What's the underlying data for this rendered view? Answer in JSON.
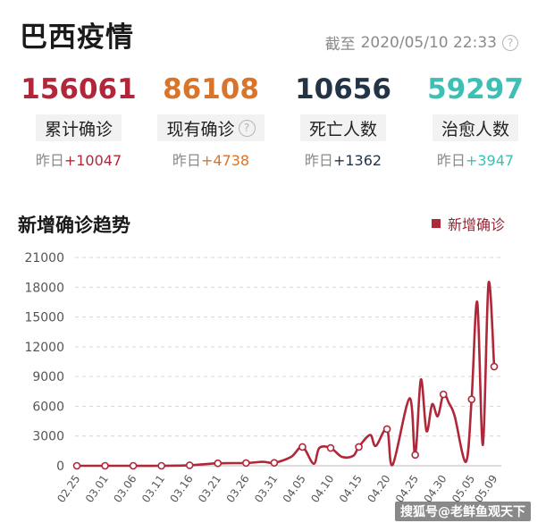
{
  "header": {
    "title": "巴西疫情",
    "deadline_label": "截至",
    "deadline_time": "2020/05/10 22:33"
  },
  "stats": [
    {
      "value": "156061",
      "label": "累计确诊",
      "delta_label": "昨日",
      "delta": "+10047",
      "color": "#b0273a",
      "has_help": false
    },
    {
      "value": "86108",
      "label": "现有确诊",
      "delta_label": "昨日",
      "delta": "+4738",
      "color": "#d9742b",
      "has_help": true
    },
    {
      "value": "10656",
      "label": "死亡人数",
      "delta_label": "昨日",
      "delta": "+1362",
      "color": "#243447",
      "has_help": false
    },
    {
      "value": "59297",
      "label": "治愈人数",
      "delta_label": "昨日",
      "delta": "+3947",
      "color": "#3cbfb4",
      "has_help": false
    }
  ],
  "chart_section": {
    "title": "新增确诊趋势",
    "legend_label": "新增确诊"
  },
  "chart_data": {
    "type": "line",
    "title": "新增确诊趋势",
    "xlabel": "",
    "ylabel": "",
    "ylim": [
      0,
      21000
    ],
    "yticks": [
      0,
      3000,
      6000,
      9000,
      12000,
      15000,
      18000,
      21000
    ],
    "xtick_labels": [
      "02.25",
      "03.01",
      "03.06",
      "03.11",
      "03.16",
      "03.21",
      "03.26",
      "03.31",
      "04.05",
      "04.10",
      "04.15",
      "04.20",
      "04.25",
      "04.30",
      "05.05",
      "05.09"
    ],
    "grid": true,
    "legend": "top-right",
    "color": "#b0273a",
    "series": [
      {
        "name": "新增确诊",
        "values": [
          [
            "02.25",
            0
          ],
          [
            "03.01",
            0
          ],
          [
            "03.06",
            0
          ],
          [
            "03.11",
            0
          ],
          [
            "03.16",
            50
          ],
          [
            "03.21",
            250
          ],
          [
            "03.26",
            280
          ],
          [
            "03.29",
            400
          ],
          [
            "03.31",
            300
          ],
          [
            "04.03",
            900
          ],
          [
            "04.05",
            1900
          ],
          [
            "04.07",
            200
          ],
          [
            "04.08",
            1800
          ],
          [
            "04.10",
            1800
          ],
          [
            "04.12",
            900
          ],
          [
            "04.14",
            1000
          ],
          [
            "04.15",
            1900
          ],
          [
            "04.17",
            3100
          ],
          [
            "04.18",
            2000
          ],
          [
            "04.20",
            3700
          ],
          [
            "04.21",
            100
          ],
          [
            "04.24",
            6800
          ],
          [
            "04.25",
            1100
          ],
          [
            "04.26",
            8700
          ],
          [
            "04.27",
            3500
          ],
          [
            "04.28",
            6200
          ],
          [
            "04.29",
            5000
          ],
          [
            "04.30",
            7200
          ],
          [
            "05.01",
            6300
          ],
          [
            "05.02",
            5000
          ],
          [
            "05.04",
            400
          ],
          [
            "05.05",
            6700
          ],
          [
            "05.06",
            16500
          ],
          [
            "05.07",
            2100
          ],
          [
            "05.08",
            18400
          ],
          [
            "05.09",
            10000
          ]
        ]
      }
    ]
  },
  "watermark": "搜狐号@老鲜鱼观天下"
}
